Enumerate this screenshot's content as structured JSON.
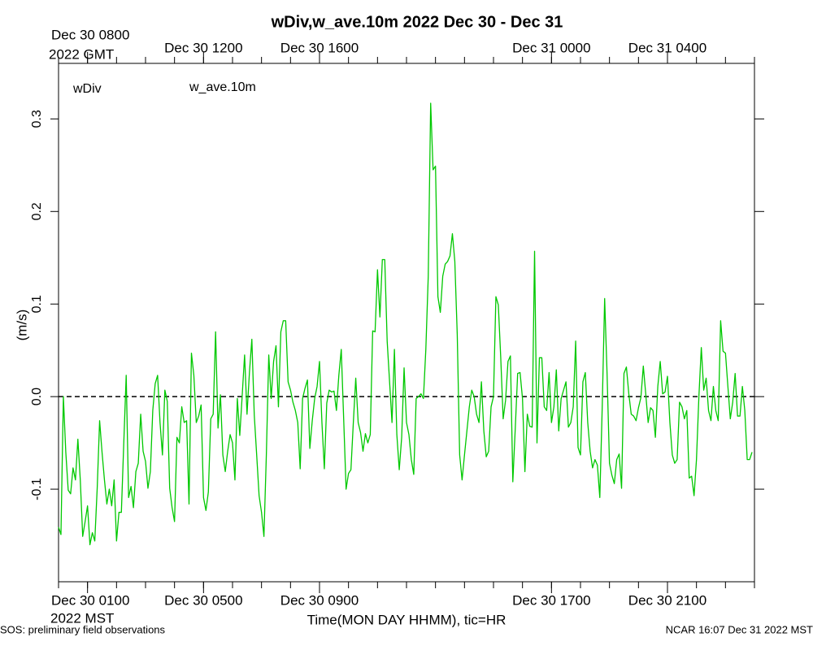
{
  "chart_data": {
    "type": "line",
    "title": "wDiv,w_ave.10m 2022 Dec 30 - Dec 31",
    "xlabel": "Time(MON DAY HHMM), tic=HR",
    "ylabel": "(m/s)",
    "variable_label": "wDiv",
    "variable_color": "#e00000",
    "bottom_year_label": "2022 MST",
    "top_year_label": "2022 GMT",
    "footer_left": "SOS: preliminary field observations",
    "footer_right": "NCAR 16:07 Dec 31 2022 MST",
    "xlim": [
      0,
      1440
    ],
    "xticks": [
      {
        "value": 60,
        "label": "Dec 30 0100"
      },
      {
        "value": 300,
        "label": "Dec 30 0500"
      },
      {
        "value": 540,
        "label": "Dec 30 0900"
      },
      {
        "value": 1020,
        "label": "Dec 30 1700"
      },
      {
        "value": 1260,
        "label": "Dec 30 2100"
      }
    ],
    "x2ticks": [
      {
        "value": 60,
        "label": "Dec 30 0800"
      },
      {
        "value": 300,
        "label": "Dec 30 1200"
      },
      {
        "value": 540,
        "label": "Dec 30 1600"
      },
      {
        "value": 1020,
        "label": "Dec 31 0000"
      },
      {
        "value": 1260,
        "label": "Dec 31 0400"
      }
    ],
    "xminor": [
      0,
      60,
      120,
      180,
      240,
      300,
      360,
      420,
      480,
      540,
      600,
      660,
      720,
      780,
      840,
      900,
      960,
      1020,
      1080,
      1140,
      1200,
      1260,
      1320,
      1380,
      1440
    ],
    "ylim": [
      -0.2,
      0.36
    ],
    "yticks": [
      -0.1,
      {
        "value": 0,
        "label": "0.0"
      },
      0.1,
      0.2,
      0.3
    ],
    "hline": {
      "value": 0,
      "style": "dashed",
      "color": "#000000"
    },
    "x": [
      0,
      5,
      10,
      15,
      20,
      25,
      30,
      35,
      40,
      45,
      50,
      55,
      60,
      65,
      70,
      75,
      80,
      85,
      90,
      95,
      100,
      105,
      110,
      115,
      120,
      125,
      130,
      135,
      140,
      145,
      150,
      155,
      160,
      165,
      170,
      175,
      180,
      185,
      190,
      195,
      200,
      205,
      210,
      215,
      220,
      225,
      230,
      235,
      240,
      245,
      250,
      255,
      260,
      265,
      270,
      275,
      280,
      285,
      290,
      295,
      300,
      305,
      310,
      315,
      320,
      325,
      330,
      335,
      340,
      345,
      350,
      355,
      360,
      365,
      370,
      375,
      380,
      385,
      390,
      395,
      400,
      405,
      410,
      415,
      420,
      425,
      430,
      435,
      440,
      445,
      450,
      455,
      460,
      465,
      470,
      475,
      480,
      485,
      490,
      495,
      500,
      505,
      510,
      515,
      520,
      525,
      530,
      535,
      540,
      545,
      550,
      555,
      560,
      565,
      570,
      575,
      580,
      585,
      590,
      595,
      600,
      605,
      610,
      615,
      620,
      625,
      630,
      635,
      640,
      645,
      650,
      655,
      660,
      665,
      670,
      675,
      680,
      685,
      690,
      695,
      700,
      705,
      710,
      715,
      720,
      725,
      730,
      735,
      740,
      745,
      750,
      755,
      760,
      765,
      770,
      775,
      780,
      785,
      790,
      795,
      800,
      805,
      810,
      815,
      820,
      825,
      830,
      835,
      840,
      845,
      850,
      855,
      860,
      865,
      870,
      875,
      880,
      885,
      890,
      895,
      900,
      905,
      910,
      915,
      920,
      925,
      930,
      935,
      940,
      945,
      950,
      955,
      960,
      965,
      970,
      975,
      980,
      985,
      990,
      995,
      1000,
      1005,
      1010,
      1015,
      1020,
      1025,
      1030,
      1035,
      1040,
      1045,
      1050,
      1055,
      1060,
      1065,
      1070,
      1075,
      1080,
      1085,
      1090,
      1095,
      1100,
      1105,
      1110,
      1115,
      1120,
      1125,
      1130,
      1135,
      1140,
      1145,
      1150,
      1155,
      1160,
      1165,
      1170,
      1175,
      1180,
      1185,
      1190,
      1195,
      1200,
      1205,
      1210,
      1215,
      1220,
      1225,
      1230,
      1235,
      1240,
      1245,
      1250,
      1255,
      1260,
      1265,
      1270,
      1275,
      1280,
      1285,
      1290,
      1295,
      1300,
      1305,
      1310,
      1315,
      1320,
      1325,
      1330,
      1335,
      1340,
      1345,
      1350,
      1355,
      1360,
      1365,
      1370,
      1375,
      1380,
      1385,
      1390,
      1395,
      1400,
      1405,
      1410,
      1415,
      1420,
      1425,
      1430,
      1435
    ],
    "series": [
      {
        "name": "w_ave.10m",
        "color": "#00c800",
        "values": [
          -0.141,
          -0.149,
          0,
          -0.06,
          -0.101,
          -0.105,
          -0.077,
          -0.09,
          -0.046,
          -0.09,
          -0.151,
          -0.135,
          -0.118,
          -0.16,
          -0.147,
          -0.156,
          -0.099,
          -0.026,
          -0.06,
          -0.09,
          -0.116,
          -0.1,
          -0.118,
          -0.09,
          -0.156,
          -0.125,
          -0.125,
          -0.05,
          0.023,
          -0.109,
          -0.097,
          -0.12,
          -0.081,
          -0.072,
          -0.019,
          -0.059,
          -0.07,
          -0.099,
          -0.081,
          -0.015,
          0.014,
          0.023,
          -0.028,
          -0.063,
          0.007,
          -0.005,
          -0.099,
          -0.12,
          -0.135,
          -0.044,
          -0.05,
          -0.011,
          -0.028,
          -0.026,
          -0.116,
          0.047,
          0.023,
          -0.028,
          -0.021,
          -0.009,
          -0.109,
          -0.123,
          -0.103,
          -0.024,
          -0.019,
          0.07,
          -0.034,
          0.002,
          -0.063,
          -0.081,
          -0.059,
          -0.041,
          -0.05,
          -0.09,
          -0.002,
          -0.042,
          0.001,
          0.045,
          -0.019,
          0.026,
          0.062,
          -0.02,
          -0.063,
          -0.107,
          -0.125,
          -0.151,
          -0.063,
          0.045,
          -0.002,
          0.038,
          0.055,
          -0.011,
          0.07,
          0.082,
          0.082,
          0.016,
          0.007,
          -0.006,
          -0.015,
          -0.028,
          -0.078,
          -0.002,
          0.009,
          0.018,
          -0.056,
          -0.026,
          -0.002,
          0.011,
          0.038,
          -0.028,
          -0.078,
          -0.007,
          0.007,
          0.005,
          0.006,
          -0.015,
          0.023,
          0.051,
          -0.024,
          -0.1,
          -0.083,
          -0.079,
          -0.028,
          0.02,
          -0.028,
          -0.039,
          -0.059,
          -0.04,
          -0.05,
          -0.041,
          0.071,
          0.07,
          0.137,
          0.086,
          0.148,
          0.148,
          0.06,
          0.016,
          -0.028,
          0.051,
          -0.041,
          -0.079,
          -0.044,
          0.031,
          -0.028,
          -0.041,
          -0.068,
          -0.084,
          -0.002,
          0,
          0.003,
          -0.002,
          0.051,
          0.13,
          0.317,
          0.245,
          0.249,
          0.108,
          0.091,
          0.13,
          0.143,
          0.146,
          0.152,
          0.176,
          0.146,
          0.067,
          -0.063,
          -0.09,
          -0.063,
          -0.037,
          -0.011,
          0.007,
          0,
          -0.019,
          -0.028,
          0.016,
          -0.037,
          -0.065,
          -0.059,
          -0.011,
          0,
          0.108,
          0.099,
          0.042,
          -0.024,
          -0.004,
          0.038,
          0.044,
          -0.092,
          -0.035,
          0.025,
          0.026,
          -0.002,
          -0.081,
          -0.019,
          -0.032,
          -0.033,
          0.157,
          -0.05,
          0.042,
          0.042,
          -0.011,
          -0.015,
          0.026,
          -0.028,
          -0.011,
          0.029,
          -0.037,
          -0.002,
          0.007,
          0.016,
          -0.033,
          -0.028,
          -0.011,
          0.06,
          -0.055,
          -0.063,
          0.016,
          0.026,
          -0.028,
          -0.059,
          -0.077,
          -0.068,
          -0.074,
          -0.109,
          -0.011,
          0.106,
          0.025,
          -0.072,
          -0.085,
          -0.094,
          -0.068,
          -0.062,
          -0.099,
          0.025,
          0.032,
          0.003,
          -0.019,
          -0.021,
          -0.026,
          -0.012,
          -0.001,
          0.033,
          0.003,
          -0.028,
          -0.012,
          -0.015,
          -0.044,
          0.011,
          0.038,
          0.003,
          0.005,
          0.022,
          -0.028,
          -0.063,
          -0.072,
          -0.068,
          -0.006,
          -0.011,
          -0.024,
          -0.015,
          -0.088,
          -0.086,
          -0.107,
          -0.068,
          0,
          0.053,
          0.007,
          0.02,
          -0.015,
          -0.026,
          0.011,
          -0.015,
          -0.026,
          0.082,
          0.049,
          0.047,
          0.011,
          -0.024,
          -0.006,
          0.025,
          -0.021,
          -0.021,
          0.011,
          -0.015,
          -0.068,
          -0.068,
          -0.06
        ]
      }
    ]
  }
}
